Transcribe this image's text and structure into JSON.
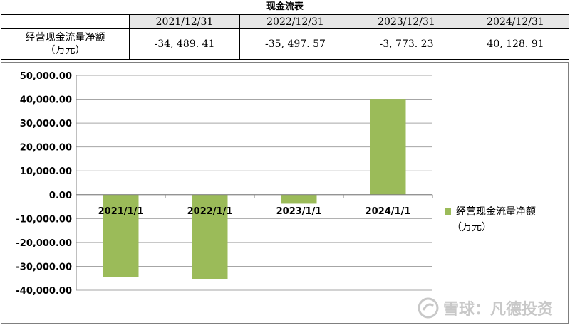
{
  "table": {
    "title": "现金流表",
    "headers": [
      "",
      "2021/12/31",
      "2022/12/31",
      "2023/12/31",
      "2024/12/31"
    ],
    "rows": [
      {
        "label_line1": "经营现金流量净额",
        "label_line2": "（万元）",
        "values": [
          "-34, 489. 41",
          "-35, 497. 57",
          "-3, 773. 23",
          "40, 128. 91"
        ]
      }
    ]
  },
  "chart_data": {
    "type": "bar",
    "categories": [
      "2021/1/1",
      "2022/1/1",
      "2023/1/1",
      "2024/1/1"
    ],
    "series": [
      {
        "name": "经营现金流量净额（万元）",
        "values": [
          -34489.41,
          -35497.57,
          -3773.23,
          40128.91
        ],
        "color": "#9bbb59"
      }
    ],
    "ylim": [
      -40000,
      50000
    ],
    "yticks": [
      -40000,
      -30000,
      -20000,
      -10000,
      0,
      10000,
      20000,
      30000,
      40000,
      50000
    ],
    "ytick_labels": [
      "-40,000.00",
      "-30,000.00",
      "-20,000.00",
      "-10,000.00",
      "0.00",
      "10,000.00",
      "20,000.00",
      "30,000.00",
      "40,000.00",
      "50,000.00"
    ],
    "legend": {
      "position": "right",
      "line1": "经营现金流量净额",
      "line2": "（万元）"
    },
    "grid": true,
    "title": "",
    "xlabel": "",
    "ylabel": ""
  },
  "watermark": {
    "text": "雪球：凡德投资",
    "icon": "snowball-logo-icon"
  }
}
